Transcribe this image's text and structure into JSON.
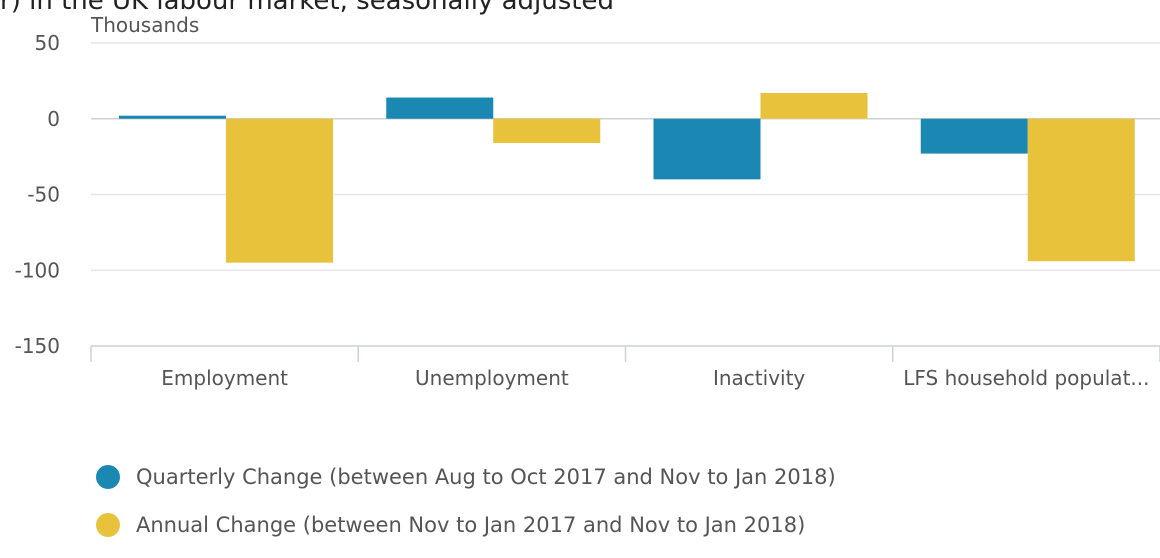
{
  "title_fragment": "r) in the UK labour market, seasonally adjusted",
  "colors": {
    "series1": "#1b88b3",
    "series2": "#e7c23a",
    "grid": "#e6e6e6",
    "axis": "#c8d3dc",
    "text": "#555555"
  },
  "chart_data": {
    "type": "bar",
    "title": "",
    "ylabel": "Thousands",
    "xlabel": "",
    "ylim": [
      -150,
      50
    ],
    "yticks": [
      50,
      0,
      -50,
      -100,
      -150
    ],
    "grid": true,
    "legend_position": "bottom",
    "categories": [
      "Employment",
      "Unemployment",
      "Inactivity",
      "LFS household populat..."
    ],
    "series": [
      {
        "name": "Quarterly Change (between Aug to Oct 2017 and Nov to Jan 2018)",
        "values": [
          2,
          14,
          -40,
          -23
        ]
      },
      {
        "name": "Annual Change (between Nov to Jan 2017 and Nov to Jan 2018)",
        "values": [
          -95,
          -16,
          17,
          -94
        ]
      }
    ]
  }
}
